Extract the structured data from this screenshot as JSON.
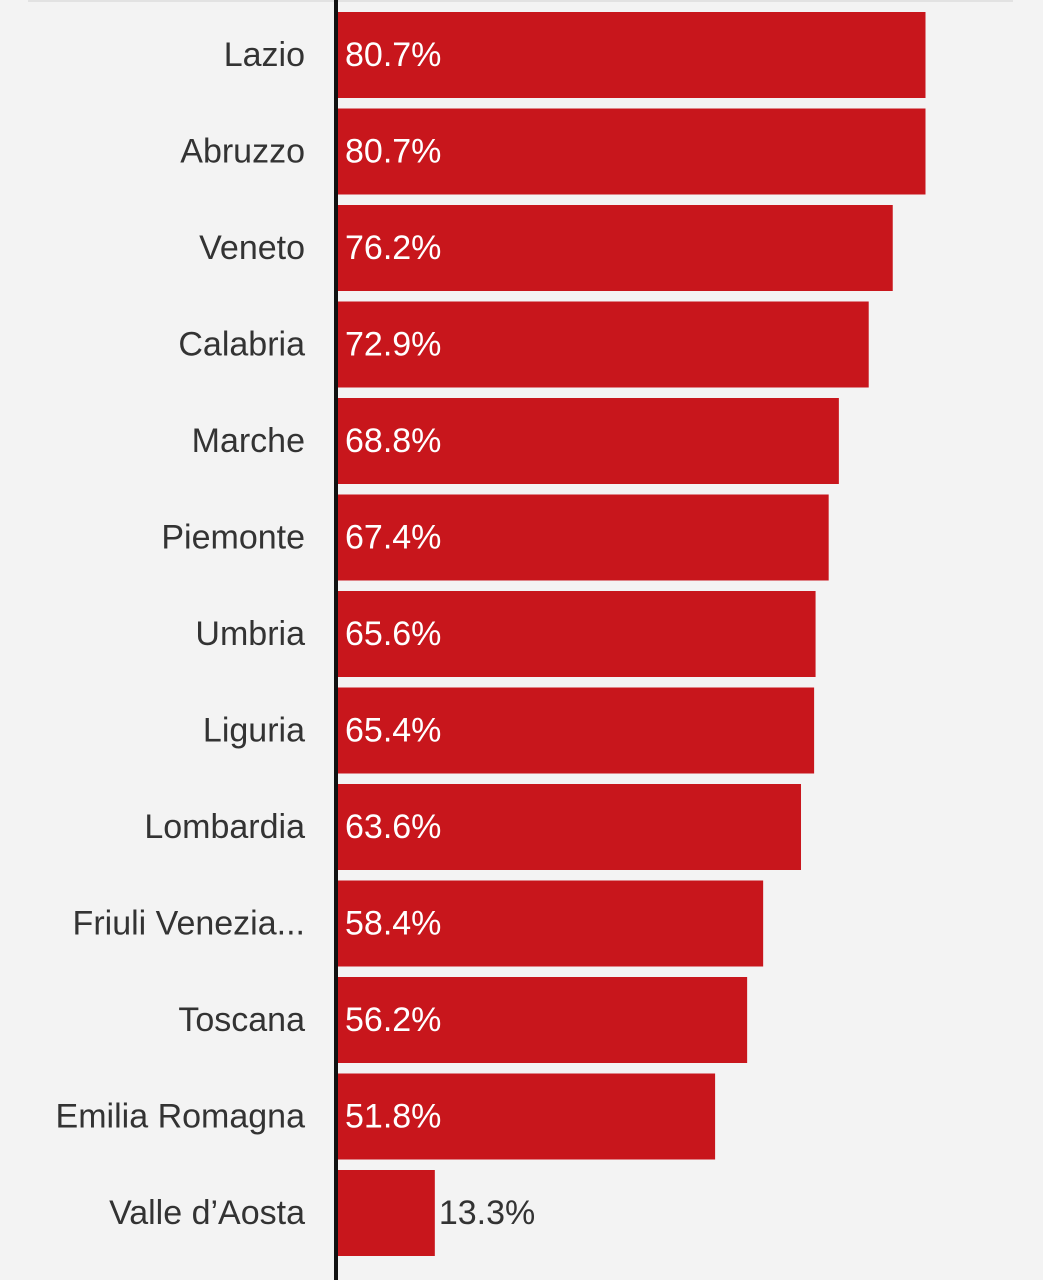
{
  "chart_data": {
    "type": "bar",
    "orientation": "horizontal",
    "categories": [
      "Lazio",
      "Abruzzo",
      "Veneto",
      "Calabria",
      "Marche",
      "Piemonte",
      "Umbria",
      "Liguria",
      "Lombardia",
      "Friuli Venezia...",
      "Toscana",
      "Emilia Romagna",
      "Valle d’Aosta"
    ],
    "values": [
      80.7,
      80.7,
      76.2,
      72.9,
      68.8,
      67.4,
      65.6,
      65.4,
      63.6,
      58.4,
      56.2,
      51.8,
      13.3
    ],
    "value_labels": [
      "80.7%",
      "80.7%",
      "76.2%",
      "72.9%",
      "68.8%",
      "67.4%",
      "65.6%",
      "65.4%",
      "63.6%",
      "58.4%",
      "56.2%",
      "51.8%",
      "13.3%"
    ],
    "title": "",
    "xlabel": "",
    "ylabel": "",
    "grid": false,
    "legend": "none"
  },
  "colors": {
    "background": "#f3f3f3",
    "bar": "#c8161c",
    "axis": "#111111",
    "label_text": "#333333",
    "value_inside": "#ffffff",
    "value_outside": "#333333"
  }
}
